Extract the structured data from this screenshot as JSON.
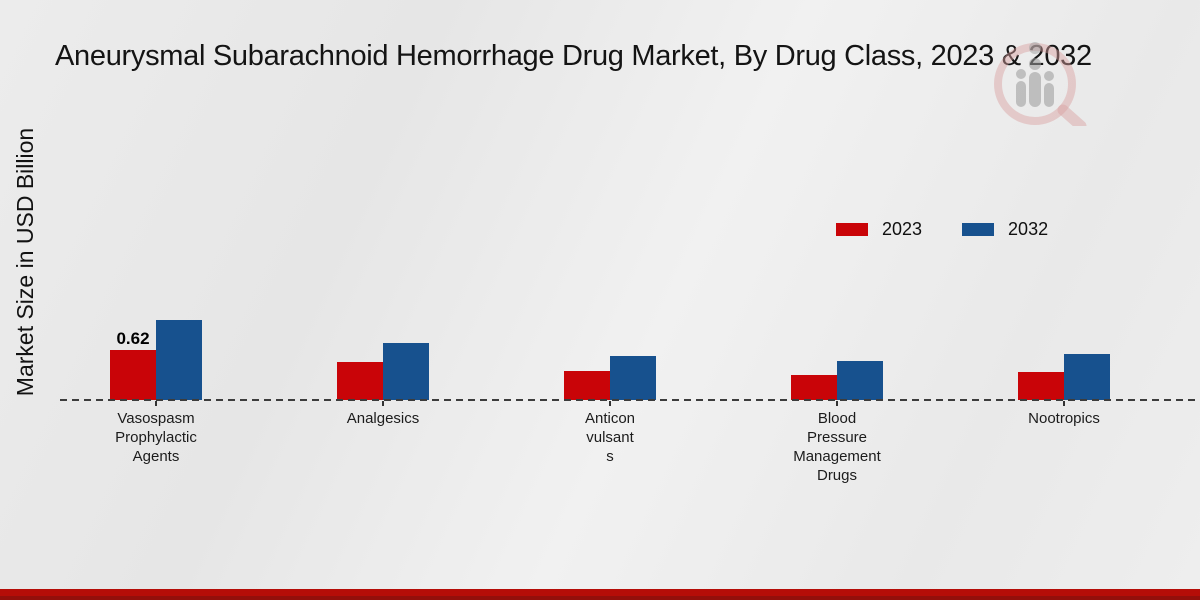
{
  "page": {
    "title": "Aneurysmal Subarachnoid Hemorrhage Drug Market, By Drug Class, 2023 & 2032"
  },
  "chart_data": {
    "type": "bar",
    "title": "Aneurysmal Subarachnoid Hemorrhage Drug Market, By Drug Class, 2023 & 2032",
    "xlabel": "",
    "ylabel": "Market Size in USD Billion",
    "categories": [
      "Vasospasm Prophylactic Agents",
      "Analgesics",
      "Anticonvulsants",
      "Blood Pressure Management Drugs",
      "Nootropics"
    ],
    "category_display_lines": [
      [
        "Vasospasm",
        "Prophylactic",
        "Agents"
      ],
      [
        "Analgesics"
      ],
      [
        "Anticon",
        "vulsant",
        "s"
      ],
      [
        "Blood",
        "Pressure",
        "Management",
        "Drugs"
      ],
      [
        "Nootropics"
      ]
    ],
    "series": [
      {
        "name": "2023",
        "color": "#c90408",
        "values": [
          0.62,
          0.47,
          0.36,
          0.31,
          0.35
        ]
      },
      {
        "name": "2032",
        "color": "#17518e",
        "values": [
          0.99,
          0.71,
          0.55,
          0.48,
          0.57
        ]
      }
    ],
    "annotations": [
      {
        "series": "2023",
        "category": "Vasospasm Prophylactic Agents",
        "text": "0.62"
      }
    ],
    "ylim": [
      0,
      1.2
    ],
    "grid": false,
    "y_axis_visible": false,
    "x_axis_style": "dashed",
    "legend_position": "top-right",
    "colors": {
      "series_2023": "#c90408",
      "series_2032": "#17518e",
      "footer_band": "#b50d08",
      "baseline": "#3c3c3c",
      "background": "#ebebeb"
    }
  }
}
